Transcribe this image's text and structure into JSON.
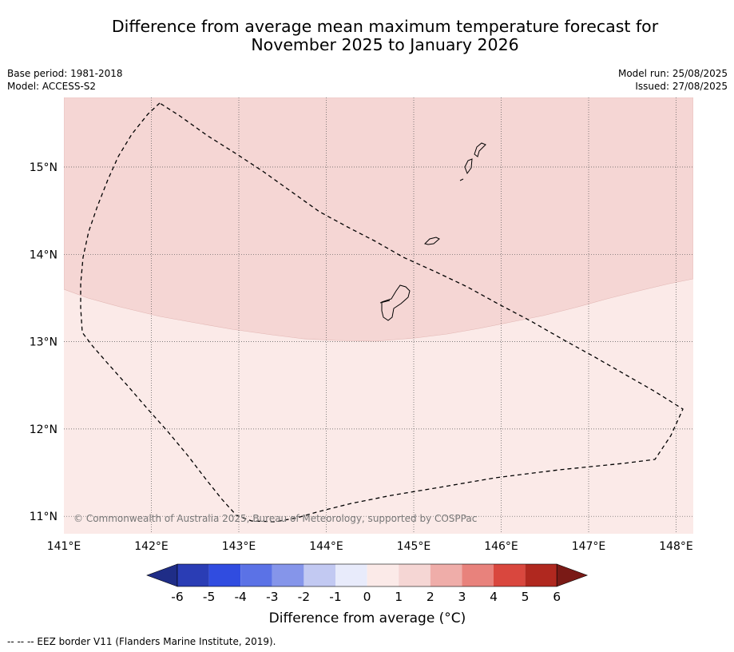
{
  "title": {
    "line1": "Difference from average mean maximum temperature forecast for",
    "line2": "November 2025 to January 2026"
  },
  "meta": {
    "base_period": "Base period: 1981-2018",
    "model": "Model: ACCESS-S2",
    "model_run": "Model run: 25/08/2025",
    "issued": "Issued: 27/08/2025"
  },
  "map": {
    "lon_labels": [
      "141°E",
      "142°E",
      "143°E",
      "144°E",
      "145°E",
      "146°E",
      "147°E",
      "148°E"
    ],
    "lat_labels": [
      "15°N",
      "14°N",
      "13°N",
      "12°N",
      "11°N"
    ],
    "copyright": "© Commonwealth of Australia 2025, Bureau of Meteorology, supported by COSPPac",
    "anomaly_regions": [
      {
        "category": "1 to 2",
        "color": "#f5d6d4"
      },
      {
        "category": "0 to 1",
        "color": "#fbeae8"
      }
    ]
  },
  "colorbar": {
    "labels": [
      "-6",
      "-5",
      "-4",
      "-3",
      "-2",
      "-1",
      "0",
      "1",
      "2",
      "3",
      "4",
      "5",
      "6"
    ],
    "colors": [
      "#1f2d87",
      "#2a3db5",
      "#304ce0",
      "#5b72e6",
      "#8595ea",
      "#c2c9f2",
      "#e8ebfb",
      "#fbeae8",
      "#f5d6d4",
      "#efada9",
      "#e8827c",
      "#d9473e",
      "#b0281f",
      "#7a1a16"
    ],
    "title": "Difference from average (°C)"
  },
  "footnote": "--  --  -- EEZ border V11 (Flanders Marine Institute, 2019)."
}
